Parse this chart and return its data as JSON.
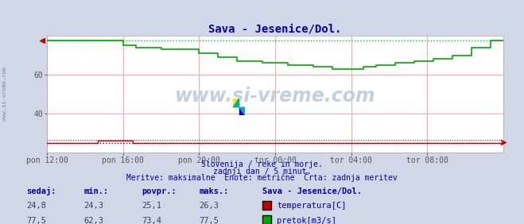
{
  "title": "Sava - Jesenice/Dol.",
  "title_color": "#0000aa",
  "bg_color": "#d0d8e8",
  "plot_bg_color": "#ffffff",
  "grid_color": "#ffaaaa",
  "xlabel_color": "#000088",
  "text_color": "#0000aa",
  "watermark": "www.si-vreme.com",
  "watermark_color": "#aabbcc",
  "subtitle_lines": [
    "Slovenija / reke in morje.",
    "zadnji dan / 5 minut.",
    "Meritve: maksimalne  Enote: metrične  Črta: zadnja meritev"
  ],
  "subtitle_color": "#0000aa",
  "ylim": [
    20,
    80
  ],
  "yticks": [
    40,
    60
  ],
  "xlim": [
    0,
    288
  ],
  "xtick_positions": [
    0,
    48,
    96,
    144,
    192,
    240
  ],
  "xtick_labels": [
    "pon 12:00",
    "pon 16:00",
    "pon 20:00",
    "tor 00:00",
    "tor 04:00",
    "tor 08:00"
  ],
  "temperature_color": "#cc0000",
  "flow_color": "#00aa00",
  "flow_dashed_color": "#00cc00",
  "temp_dashed_color": "#cc0000",
  "blue_line_color": "#0000cc",
  "sidebar_text": "www.si-vreme.com",
  "sidebar_color": "#7788aa",
  "legend_title": "Sava - Jesenice/Dol.",
  "legend_items": [
    {
      "label": "temperatura[C]",
      "color": "#cc0000"
    },
    {
      "label": "pretok[m3/s]",
      "color": "#00aa00"
    }
  ],
  "stats_headers": [
    "sedaj:",
    "min.:",
    "povpr.:",
    "maks.:"
  ],
  "stats_temp": [
    24.8,
    24.3,
    25.1,
    26.3
  ],
  "stats_flow": [
    77.5,
    62.3,
    73.4,
    77.5
  ],
  "flow_max_dashed": 77.5,
  "temp_max_dashed": 26.3,
  "temp_line_y": 25.0,
  "blue_line_y": 25.0
}
